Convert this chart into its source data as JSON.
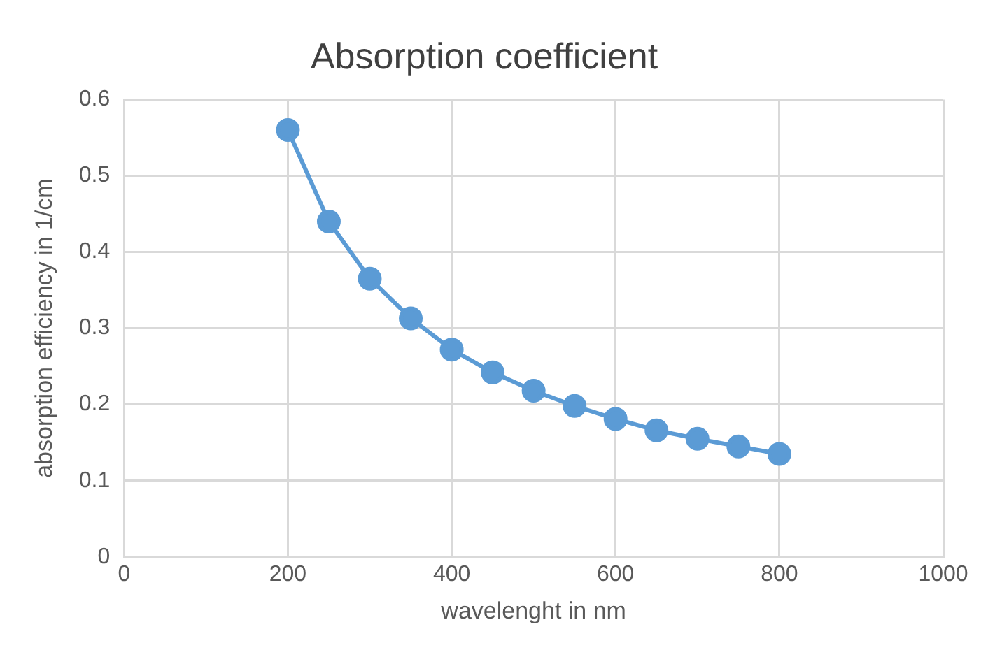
{
  "chart_data": {
    "type": "line",
    "title": "Absorption coefficient",
    "xlabel": "wavelenght in nm",
    "ylabel": "absorption efficiency in 1/cm",
    "x": [
      200,
      250,
      300,
      350,
      400,
      450,
      500,
      550,
      600,
      650,
      700,
      750,
      800
    ],
    "series": [
      {
        "color": "#5b9bd5",
        "values": [
          0.56,
          0.44,
          0.365,
          0.313,
          0.272,
          0.242,
          0.218,
          0.198,
          0.181,
          0.166,
          0.155,
          0.145,
          0.135
        ]
      }
    ],
    "xlim": [
      0,
      1000
    ],
    "xticks": [
      0,
      200,
      400,
      600,
      800,
      1000
    ],
    "ylim": [
      0,
      0.6
    ],
    "yticks": [
      0,
      0.1,
      0.2,
      0.3,
      0.4,
      0.5,
      0.6
    ],
    "grid": true,
    "legend": false,
    "marker": "circle",
    "line_style": "solid"
  }
}
